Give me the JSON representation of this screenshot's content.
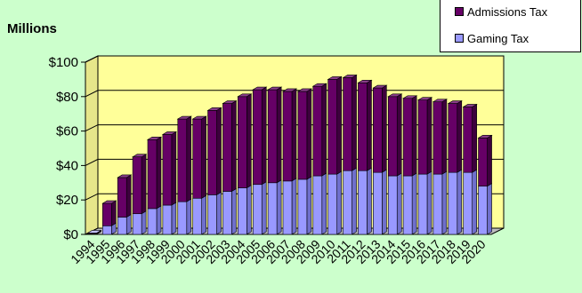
{
  "chart_data": {
    "type": "bar",
    "stacked": true,
    "ylabel": "Millions",
    "ylim": [
      0,
      100
    ],
    "yticks": [
      "$0",
      "$20",
      "$40",
      "$60",
      "$80",
      "$100"
    ],
    "categories": [
      "1994",
      "1995",
      "1996",
      "1997",
      "1998",
      "1999",
      "2000",
      "2001",
      "2002",
      "2003",
      "2004",
      "2005",
      "2006",
      "2007",
      "2008",
      "2009",
      "2010",
      "2011",
      "2012",
      "2013",
      "2014",
      "2015",
      "2016",
      "2017",
      "2018",
      "2019",
      "2020"
    ],
    "series": [
      {
        "name": "Gaming Tax",
        "color": "#9999ff",
        "values": [
          0.3,
          5,
          10,
          12,
          15,
          17,
          19,
          21,
          23,
          25,
          27,
          29,
          30,
          31,
          32,
          34,
          35,
          37,
          37,
          36,
          34,
          34,
          35,
          35,
          36,
          36,
          28
        ]
      },
      {
        "name": "Admissions Tax",
        "color": "#660066",
        "values": [
          0.5,
          13,
          23,
          33,
          40,
          41,
          48,
          46,
          49,
          51,
          53,
          55,
          54,
          52,
          51,
          52,
          55,
          54,
          51,
          49,
          46,
          45,
          43,
          42,
          40,
          38,
          28
        ]
      }
    ],
    "legend_position": "top-right",
    "grid": true,
    "plot_background": "#ffff99"
  }
}
